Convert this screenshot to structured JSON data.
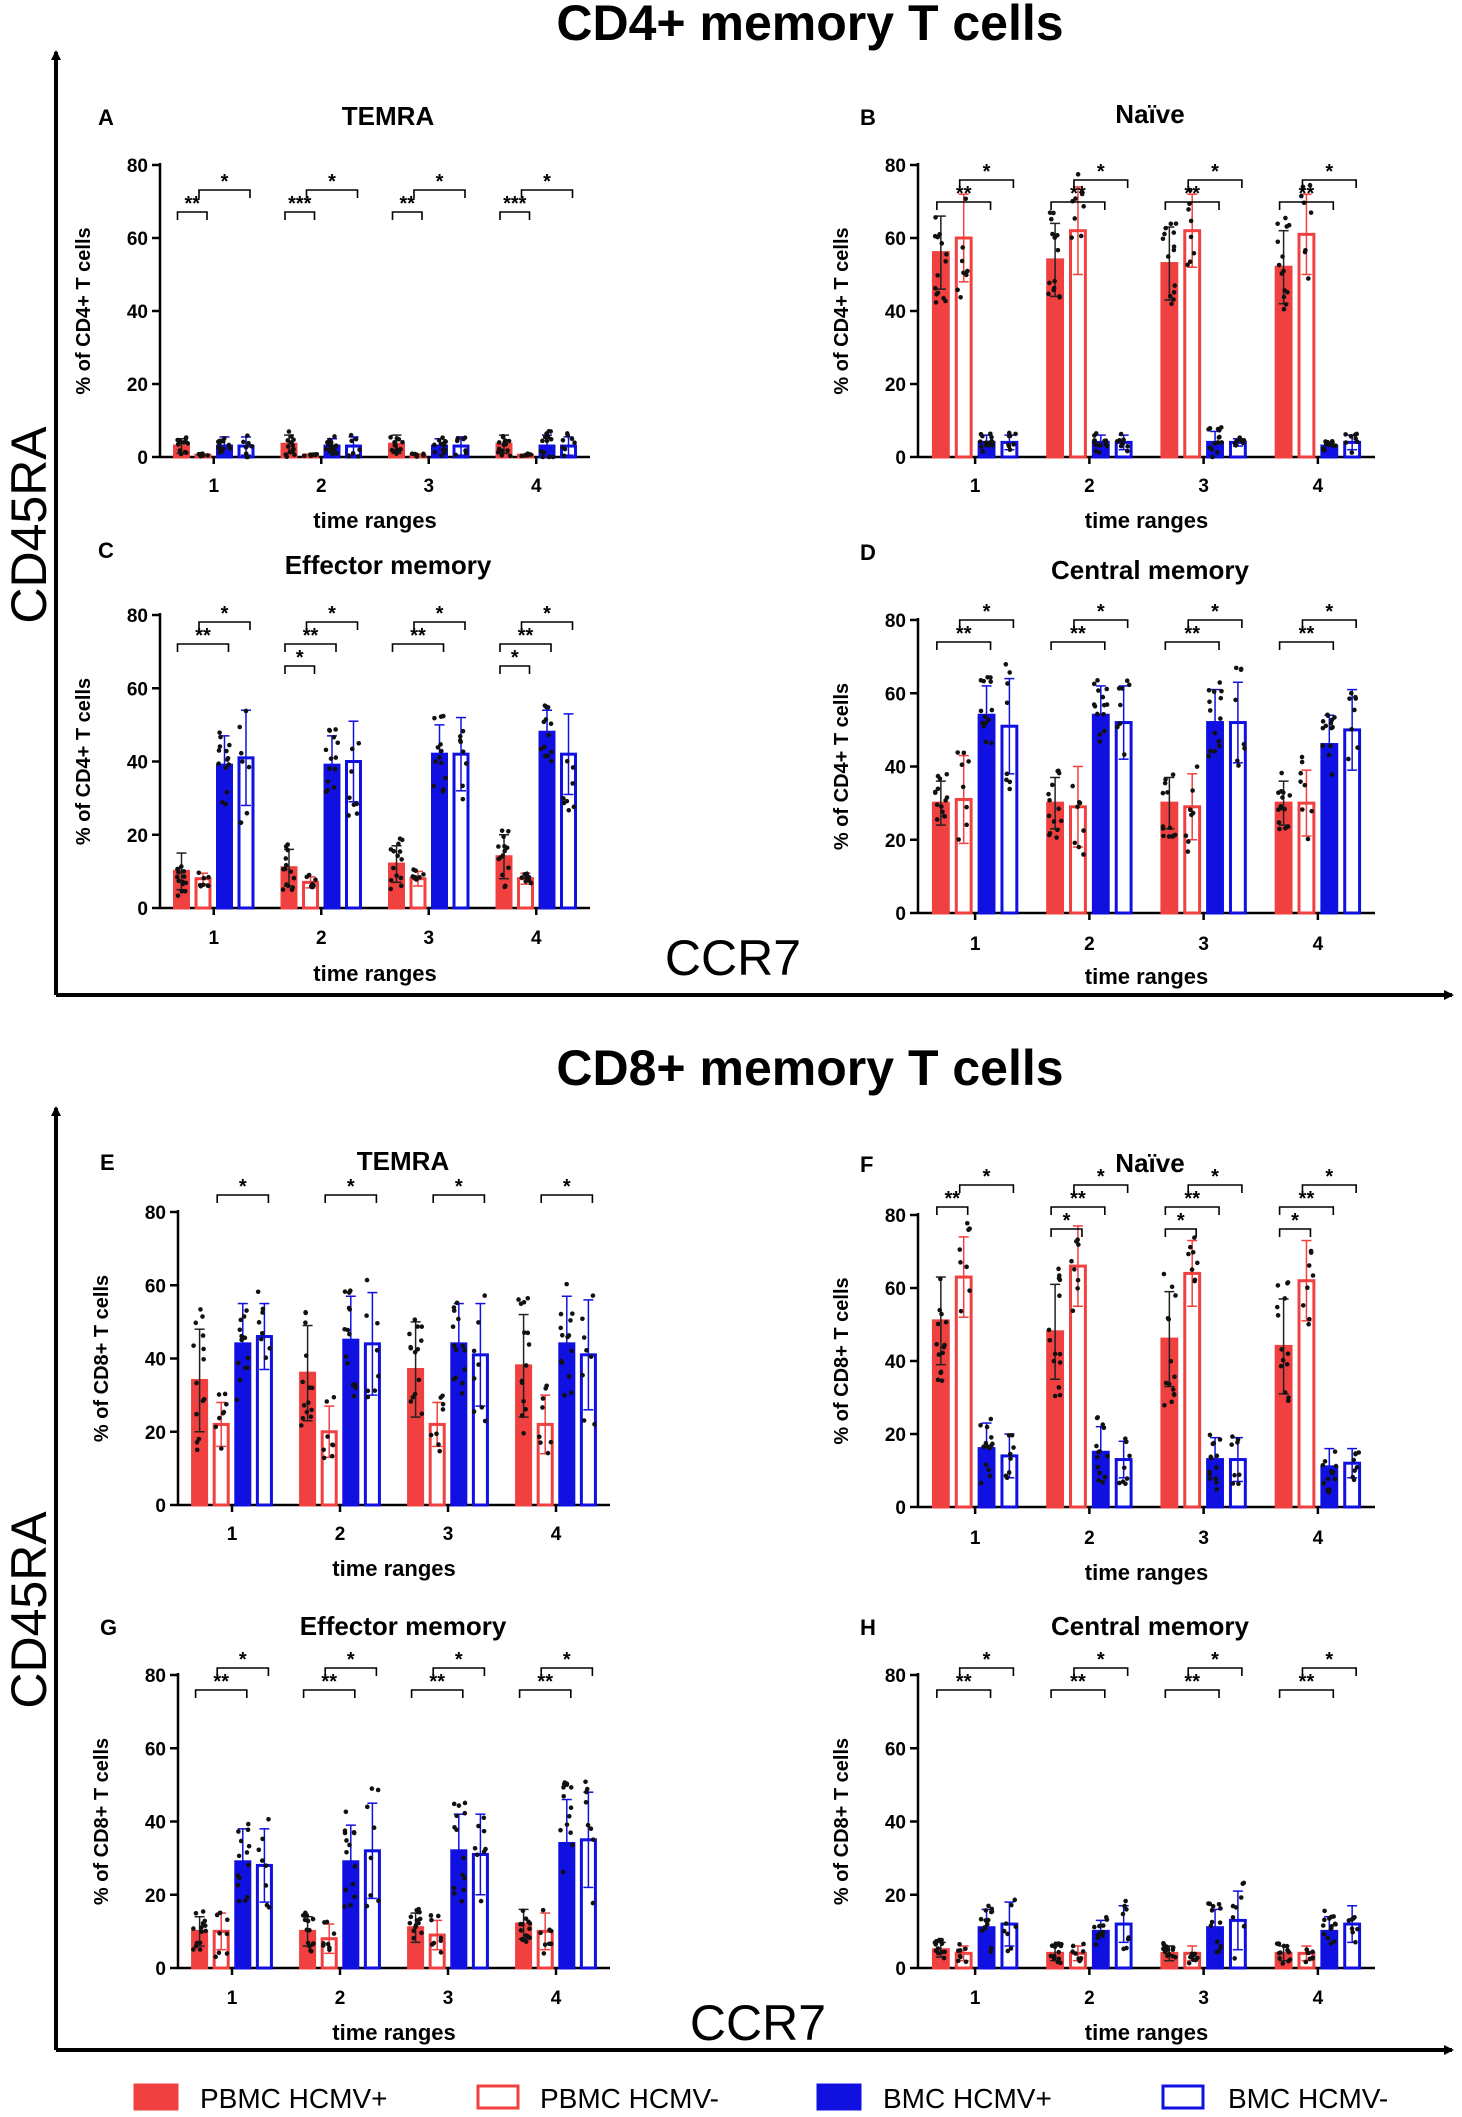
{
  "legend": [
    {
      "label": "PBMC HCMV+",
      "color": "#f04040",
      "filled": true
    },
    {
      "label": "PBMC HCMV-",
      "color": "#f04040",
      "filled": false
    },
    {
      "label": "BMC HCMV+",
      "color": "#1010e0",
      "filled": true
    },
    {
      "label": "BMC HCMV-",
      "color": "#1010e0",
      "filled": false
    }
  ],
  "sections": [
    {
      "title": "CD4+ memory T cells",
      "y_axis_label": "CD45RA",
      "x_axis_label": "CCR7"
    },
    {
      "title": "CD8+ memory T cells",
      "y_axis_label": "CD45RA",
      "x_axis_label": "CCR7"
    }
  ],
  "chart_data": [
    {
      "type": "bar",
      "letter": "A",
      "title": "TEMRA",
      "ylabel": "% of CD4+ T cells",
      "xlabel": "time ranges",
      "categories": [
        "1",
        "2",
        "3",
        "4"
      ],
      "ylim": [
        0,
        80
      ],
      "yticks": [
        "0",
        "20",
        "40",
        "60",
        "80"
      ],
      "series": [
        {
          "name": "PBMC HCMV+",
          "values": [
            3,
            3.5,
            3.5,
            3.5
          ],
          "sd": [
            2,
            2.5,
            2.5,
            2.5
          ]
        },
        {
          "name": "PBMC HCMV-",
          "values": [
            0.5,
            0.5,
            0.5,
            0.5
          ],
          "sd": [
            0.3,
            0.3,
            0.3,
            0.3
          ]
        },
        {
          "name": "BMC HCMV+",
          "values": [
            3,
            3,
            3,
            3
          ],
          "sd": [
            2.5,
            2,
            2,
            3
          ]
        },
        {
          "name": "BMC HCMV-",
          "values": [
            3,
            3,
            3,
            3
          ],
          "sd": [
            2.5,
            2.5,
            2.5,
            2.5
          ]
        }
      ],
      "significance": [
        {
          "cat": "1",
          "from": 0,
          "to": 1,
          "label": "**"
        },
        {
          "cat": "1",
          "from": 1,
          "to": 3,
          "label": "*"
        },
        {
          "cat": "2",
          "from": 0,
          "to": 1,
          "label": "***"
        },
        {
          "cat": "2",
          "from": 1,
          "to": 3,
          "label": "*"
        },
        {
          "cat": "3",
          "from": 0,
          "to": 1,
          "label": "**"
        },
        {
          "cat": "3",
          "from": 1,
          "to": 3,
          "label": "*"
        },
        {
          "cat": "4",
          "from": 0,
          "to": 1,
          "label": "***"
        },
        {
          "cat": "4",
          "from": 1,
          "to": 3,
          "label": "*"
        }
      ]
    },
    {
      "type": "bar",
      "letter": "B",
      "title": "Naïve",
      "ylabel": "% of CD4+ T cells",
      "xlabel": "time ranges",
      "categories": [
        "1",
        "2",
        "3",
        "4"
      ],
      "ylim": [
        0,
        80
      ],
      "yticks": [
        "0",
        "20",
        "40",
        "60",
        "80"
      ],
      "series": [
        {
          "name": "PBMC HCMV+",
          "values": [
            56,
            54,
            53,
            52
          ],
          "sd": [
            10,
            10,
            10,
            10
          ]
        },
        {
          "name": "PBMC HCMV-",
          "values": [
            60,
            62,
            62,
            61
          ],
          "sd": [
            12,
            12,
            10,
            11
          ]
        },
        {
          "name": "BMC HCMV+",
          "values": [
            4,
            4,
            4,
            3
          ],
          "sd": [
            2,
            2,
            3,
            1
          ]
        },
        {
          "name": "BMC HCMV-",
          "values": [
            4,
            4,
            4,
            4
          ],
          "sd": [
            2,
            2,
            1,
            2
          ]
        }
      ],
      "significance": [
        {
          "cat": "1",
          "from": 0,
          "to": 2,
          "label": "**"
        },
        {
          "cat": "1",
          "from": 1,
          "to": 3,
          "label": "*"
        },
        {
          "cat": "2",
          "from": 0,
          "to": 2,
          "label": "**"
        },
        {
          "cat": "2",
          "from": 1,
          "to": 3,
          "label": "*"
        },
        {
          "cat": "3",
          "from": 0,
          "to": 2,
          "label": "**"
        },
        {
          "cat": "3",
          "from": 1,
          "to": 3,
          "label": "*"
        },
        {
          "cat": "4",
          "from": 0,
          "to": 2,
          "label": "**"
        },
        {
          "cat": "4",
          "from": 1,
          "to": 3,
          "label": "*"
        }
      ]
    },
    {
      "type": "bar",
      "letter": "C",
      "title": "Effector memory",
      "ylabel": "% of CD4+ T cells",
      "xlabel": "time ranges",
      "categories": [
        "1",
        "2",
        "3",
        "4"
      ],
      "ylim": [
        0,
        80
      ],
      "yticks": [
        "0",
        "20",
        "40",
        "60",
        "80"
      ],
      "series": [
        {
          "name": "PBMC HCMV+",
          "values": [
            10,
            11,
            12,
            14
          ],
          "sd": [
            5,
            5,
            5,
            6
          ]
        },
        {
          "name": "PBMC HCMV-",
          "values": [
            8,
            7,
            8,
            8
          ],
          "sd": [
            1.5,
            1.5,
            2,
            1.5
          ]
        },
        {
          "name": "BMC HCMV+",
          "values": [
            39,
            39,
            42,
            48
          ],
          "sd": [
            8,
            8,
            8,
            6
          ]
        },
        {
          "name": "BMC HCMV-",
          "values": [
            41,
            40,
            42,
            42
          ],
          "sd": [
            13,
            11,
            10,
            11
          ]
        }
      ],
      "significance": [
        {
          "cat": "1",
          "from": 0,
          "to": 2,
          "label": "**"
        },
        {
          "cat": "1",
          "from": 1,
          "to": 3,
          "label": "*"
        },
        {
          "cat": "2",
          "from": 0,
          "to": 1,
          "label": "*"
        },
        {
          "cat": "2",
          "from": 0,
          "to": 2,
          "label": "**"
        },
        {
          "cat": "2",
          "from": 1,
          "to": 3,
          "label": "*"
        },
        {
          "cat": "3",
          "from": 0,
          "to": 2,
          "label": "**"
        },
        {
          "cat": "3",
          "from": 1,
          "to": 3,
          "label": "*"
        },
        {
          "cat": "4",
          "from": 0,
          "to": 1,
          "label": "*"
        },
        {
          "cat": "4",
          "from": 0,
          "to": 2,
          "label": "**"
        },
        {
          "cat": "4",
          "from": 1,
          "to": 3,
          "label": "*"
        }
      ]
    },
    {
      "type": "bar",
      "letter": "D",
      "title": "Central memory",
      "ylabel": "% of CD4+ T cells",
      "xlabel": "time ranges",
      "categories": [
        "1",
        "2",
        "3",
        "4"
      ],
      "ylim": [
        0,
        80
      ],
      "yticks": [
        "0",
        "20",
        "40",
        "60",
        "80"
      ],
      "series": [
        {
          "name": "PBMC HCMV+",
          "values": [
            30,
            30,
            30,
            30
          ],
          "sd": [
            6,
            7,
            7,
            6
          ]
        },
        {
          "name": "PBMC HCMV-",
          "values": [
            31,
            29,
            29,
            30
          ],
          "sd": [
            12,
            11,
            9,
            9
          ]
        },
        {
          "name": "BMC HCMV+",
          "values": [
            54,
            54,
            52,
            46
          ],
          "sd": [
            8,
            8,
            9,
            8
          ]
        },
        {
          "name": "BMC HCMV-",
          "values": [
            51,
            52,
            52,
            50
          ],
          "sd": [
            13,
            10,
            11,
            11
          ]
        }
      ],
      "significance": [
        {
          "cat": "1",
          "from": 0,
          "to": 2,
          "label": "**"
        },
        {
          "cat": "1",
          "from": 1,
          "to": 3,
          "label": "*"
        },
        {
          "cat": "2",
          "from": 0,
          "to": 2,
          "label": "**"
        },
        {
          "cat": "2",
          "from": 1,
          "to": 3,
          "label": "*"
        },
        {
          "cat": "3",
          "from": 0,
          "to": 2,
          "label": "**"
        },
        {
          "cat": "3",
          "from": 1,
          "to": 3,
          "label": "*"
        },
        {
          "cat": "4",
          "from": 0,
          "to": 2,
          "label": "**"
        },
        {
          "cat": "4",
          "from": 1,
          "to": 3,
          "label": "*"
        }
      ]
    },
    {
      "type": "bar",
      "letter": "E",
      "title": "TEMRA",
      "ylabel": "% of CD8+ T cells",
      "xlabel": "time ranges",
      "categories": [
        "1",
        "2",
        "3",
        "4"
      ],
      "ylim": [
        0,
        80
      ],
      "yticks": [
        "0",
        "20",
        "40",
        "60",
        "80"
      ],
      "series": [
        {
          "name": "PBMC HCMV+",
          "values": [
            34,
            36,
            37,
            38
          ],
          "sd": [
            14,
            13,
            13,
            14
          ]
        },
        {
          "name": "PBMC HCMV-",
          "values": [
            22,
            20,
            22,
            22
          ],
          "sd": [
            6,
            7,
            6,
            8
          ]
        },
        {
          "name": "BMC HCMV+",
          "values": [
            44,
            45,
            44,
            44
          ],
          "sd": [
            11,
            12,
            11,
            13
          ]
        },
        {
          "name": "BMC HCMV-",
          "values": [
            46,
            44,
            41,
            41
          ],
          "sd": [
            9,
            14,
            14,
            15
          ]
        }
      ],
      "significance": [
        {
          "cat": "1",
          "from": 1,
          "to": 3,
          "label": "*"
        },
        {
          "cat": "2",
          "from": 1,
          "to": 3,
          "label": "*"
        },
        {
          "cat": "3",
          "from": 1,
          "to": 3,
          "label": "*"
        },
        {
          "cat": "4",
          "from": 1,
          "to": 3,
          "label": "*"
        }
      ]
    },
    {
      "type": "bar",
      "letter": "F",
      "title": "Naïve",
      "ylabel": "% of CD8+ T cells",
      "xlabel": "time ranges",
      "categories": [
        "1",
        "2",
        "3",
        "4"
      ],
      "ylim": [
        0,
        80
      ],
      "yticks": [
        "0",
        "20",
        "40",
        "60",
        "80"
      ],
      "series": [
        {
          "name": "PBMC HCMV+",
          "values": [
            51,
            48,
            46,
            44
          ],
          "sd": [
            12,
            13,
            13,
            13
          ]
        },
        {
          "name": "PBMC HCMV-",
          "values": [
            63,
            66,
            64,
            62
          ],
          "sd": [
            11,
            11,
            9,
            11
          ]
        },
        {
          "name": "BMC HCMV+",
          "values": [
            16,
            15,
            13,
            11
          ],
          "sd": [
            7,
            7,
            6,
            5
          ]
        },
        {
          "name": "BMC HCMV-",
          "values": [
            14,
            13,
            13,
            12
          ],
          "sd": [
            6,
            5,
            6,
            4
          ]
        }
      ],
      "significance": [
        {
          "cat": "1",
          "from": 0,
          "to": 1,
          "label": "**"
        },
        {
          "cat": "1",
          "from": 1,
          "to": 3,
          "label": "*"
        },
        {
          "cat": "2",
          "from": 0,
          "to": 1,
          "label": "*"
        },
        {
          "cat": "2",
          "from": 0,
          "to": 2,
          "label": "**"
        },
        {
          "cat": "2",
          "from": 1,
          "to": 3,
          "label": "*"
        },
        {
          "cat": "3",
          "from": 0,
          "to": 1,
          "label": "*"
        },
        {
          "cat": "3",
          "from": 0,
          "to": 2,
          "label": "**"
        },
        {
          "cat": "3",
          "from": 1,
          "to": 3,
          "label": "*"
        },
        {
          "cat": "4",
          "from": 0,
          "to": 1,
          "label": "*"
        },
        {
          "cat": "4",
          "from": 0,
          "to": 2,
          "label": "**"
        },
        {
          "cat": "4",
          "from": 1,
          "to": 3,
          "label": "*"
        }
      ]
    },
    {
      "type": "bar",
      "letter": "G",
      "title": "Effector memory",
      "ylabel": "% of CD8+ T cells",
      "xlabel": "time ranges",
      "categories": [
        "1",
        "2",
        "3",
        "4"
      ],
      "ylim": [
        0,
        80
      ],
      "yticks": [
        "0",
        "20",
        "40",
        "60",
        "80"
      ],
      "series": [
        {
          "name": "PBMC HCMV+",
          "values": [
            10,
            10,
            11,
            12
          ],
          "sd": [
            4,
            4,
            4,
            4
          ]
        },
        {
          "name": "PBMC HCMV-",
          "values": [
            10,
            8,
            9,
            10
          ],
          "sd": [
            5,
            4,
            4,
            5
          ]
        },
        {
          "name": "BMC HCMV+",
          "values": [
            29,
            29,
            32,
            34
          ],
          "sd": [
            9,
            10,
            10,
            12
          ]
        },
        {
          "name": "BMC HCMV-",
          "values": [
            28,
            32,
            31,
            35
          ],
          "sd": [
            10,
            13,
            11,
            13
          ]
        }
      ],
      "significance": [
        {
          "cat": "1",
          "from": 0,
          "to": 2,
          "label": "**"
        },
        {
          "cat": "1",
          "from": 1,
          "to": 3,
          "label": "*"
        },
        {
          "cat": "2",
          "from": 0,
          "to": 2,
          "label": "**"
        },
        {
          "cat": "2",
          "from": 1,
          "to": 3,
          "label": "*"
        },
        {
          "cat": "3",
          "from": 0,
          "to": 2,
          "label": "**"
        },
        {
          "cat": "3",
          "from": 1,
          "to": 3,
          "label": "*"
        },
        {
          "cat": "4",
          "from": 0,
          "to": 2,
          "label": "**"
        },
        {
          "cat": "4",
          "from": 1,
          "to": 3,
          "label": "*"
        }
      ]
    },
    {
      "type": "bar",
      "letter": "H",
      "title": "Central memory",
      "ylabel": "% of CD8+ T cells",
      "xlabel": "time ranges",
      "categories": [
        "1",
        "2",
        "3",
        "4"
      ],
      "ylim": [
        0,
        80
      ],
      "yticks": [
        "0",
        "20",
        "40",
        "60",
        "80"
      ],
      "series": [
        {
          "name": "PBMC HCMV+",
          "values": [
            5,
            4,
            4,
            4
          ],
          "sd": [
            2,
            2,
            2,
            2
          ]
        },
        {
          "name": "PBMC HCMV-",
          "values": [
            4,
            4,
            4,
            4
          ],
          "sd": [
            2,
            2,
            2,
            2
          ]
        },
        {
          "name": "BMC HCMV+",
          "values": [
            11,
            10,
            11,
            10
          ],
          "sd": [
            5,
            3,
            5,
            4
          ]
        },
        {
          "name": "BMC HCMV-",
          "values": [
            12,
            12,
            13,
            12
          ],
          "sd": [
            6,
            5,
            8,
            5
          ]
        }
      ],
      "significance": [
        {
          "cat": "1",
          "from": 0,
          "to": 2,
          "label": "**"
        },
        {
          "cat": "1",
          "from": 1,
          "to": 3,
          "label": "*"
        },
        {
          "cat": "2",
          "from": 0,
          "to": 2,
          "label": "**"
        },
        {
          "cat": "2",
          "from": 1,
          "to": 3,
          "label": "*"
        },
        {
          "cat": "3",
          "from": 0,
          "to": 2,
          "label": "**"
        },
        {
          "cat": "3",
          "from": 1,
          "to": 3,
          "label": "*"
        },
        {
          "cat": "4",
          "from": 0,
          "to": 2,
          "label": "**"
        },
        {
          "cat": "4",
          "from": 1,
          "to": 3,
          "label": "*"
        }
      ]
    }
  ]
}
